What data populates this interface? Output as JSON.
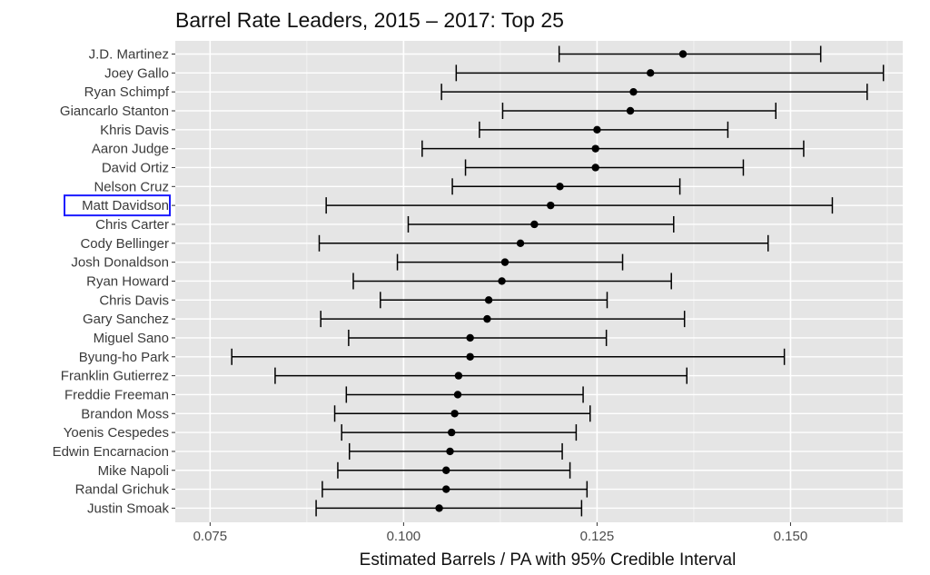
{
  "chart_data": {
    "type": "scatter",
    "title": "Barrel Rate Leaders, 2015 – 2017: Top 25",
    "xlabel": "Estimated Barrels / PA with 95% Credible Interval",
    "ylabel": "",
    "xlim": [
      0.0705,
      0.1645
    ],
    "x_ticks": [
      0.075,
      0.1,
      0.125,
      0.15
    ],
    "x_tick_labels": [
      "0.075",
      "0.100",
      "0.125",
      "0.150"
    ],
    "grid": true,
    "highlighted_player": "Matt Davidson",
    "highlight_color": "#1a1aff",
    "panel_color": "#e5e5e5",
    "players": [
      {
        "name": "J.D. Martinez",
        "estimate": 0.1361,
        "lower": 0.1201,
        "upper": 0.1539
      },
      {
        "name": "Joey Gallo",
        "estimate": 0.1319,
        "lower": 0.1068,
        "upper": 0.162
      },
      {
        "name": "Ryan Schimpf",
        "estimate": 0.1297,
        "lower": 0.1049,
        "upper": 0.1599
      },
      {
        "name": "Giancarlo Stanton",
        "estimate": 0.1293,
        "lower": 0.1128,
        "upper": 0.1481
      },
      {
        "name": "Khris Davis",
        "estimate": 0.125,
        "lower": 0.1098,
        "upper": 0.1419
      },
      {
        "name": "Aaron Judge",
        "estimate": 0.1248,
        "lower": 0.1024,
        "upper": 0.1517
      },
      {
        "name": "David Ortiz",
        "estimate": 0.1248,
        "lower": 0.108,
        "upper": 0.1439
      },
      {
        "name": "Nelson Cruz",
        "estimate": 0.1202,
        "lower": 0.1063,
        "upper": 0.1357
      },
      {
        "name": "Matt Davidson",
        "estimate": 0.119,
        "lower": 0.09,
        "upper": 0.1554
      },
      {
        "name": "Chris Carter",
        "estimate": 0.1169,
        "lower": 0.1006,
        "upper": 0.1349
      },
      {
        "name": "Cody Bellinger",
        "estimate": 0.1151,
        "lower": 0.0891,
        "upper": 0.1471
      },
      {
        "name": "Josh Donaldson",
        "estimate": 0.1131,
        "lower": 0.0992,
        "upper": 0.1283
      },
      {
        "name": "Ryan Howard",
        "estimate": 0.1127,
        "lower": 0.0935,
        "upper": 0.1346
      },
      {
        "name": "Chris Davis",
        "estimate": 0.111,
        "lower": 0.097,
        "upper": 0.1263
      },
      {
        "name": "Gary Sanchez",
        "estimate": 0.1108,
        "lower": 0.0893,
        "upper": 0.1363
      },
      {
        "name": "Miguel Sano",
        "estimate": 0.1086,
        "lower": 0.0929,
        "upper": 0.1262
      },
      {
        "name": "Byung-ho Park",
        "estimate": 0.1086,
        "lower": 0.0778,
        "upper": 0.1492
      },
      {
        "name": "Franklin Gutierrez",
        "estimate": 0.1071,
        "lower": 0.0834,
        "upper": 0.1366
      },
      {
        "name": "Freddie Freeman",
        "estimate": 0.107,
        "lower": 0.0926,
        "upper": 0.1232
      },
      {
        "name": "Brandon Moss",
        "estimate": 0.1066,
        "lower": 0.0911,
        "upper": 0.1241
      },
      {
        "name": "Yoenis Cespedes",
        "estimate": 0.1062,
        "lower": 0.092,
        "upper": 0.1223
      },
      {
        "name": "Edwin Encarnacion",
        "estimate": 0.106,
        "lower": 0.093,
        "upper": 0.1205
      },
      {
        "name": "Mike Napoli",
        "estimate": 0.1055,
        "lower": 0.0915,
        "upper": 0.1215
      },
      {
        "name": "Randal Grichuk",
        "estimate": 0.1055,
        "lower": 0.0895,
        "upper": 0.1237
      },
      {
        "name": "Justin Smoak",
        "estimate": 0.1046,
        "lower": 0.0887,
        "upper": 0.123
      }
    ]
  }
}
